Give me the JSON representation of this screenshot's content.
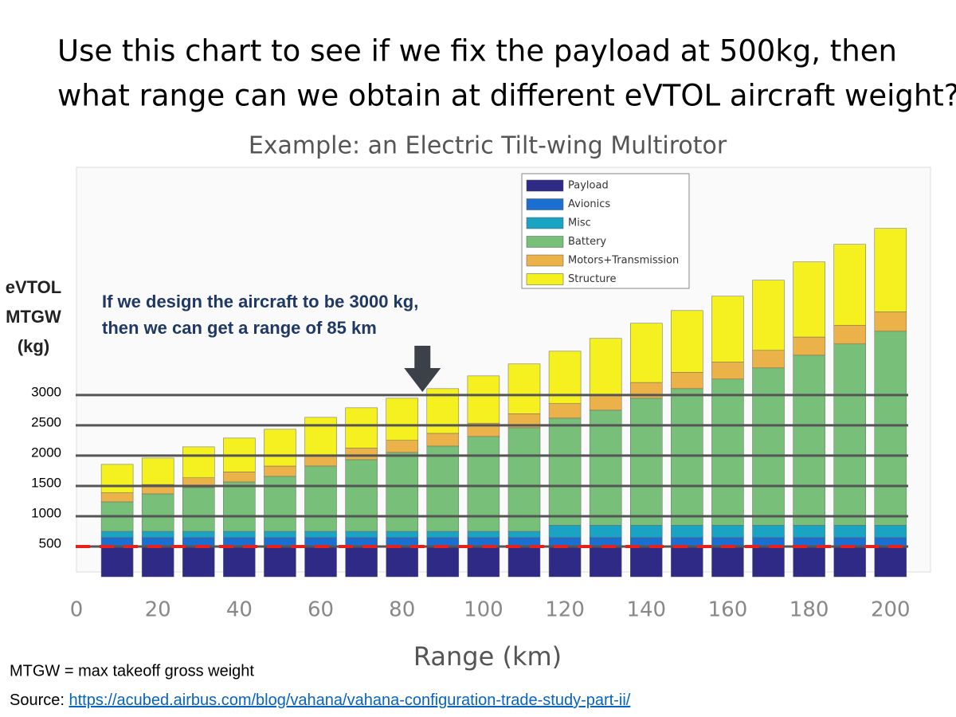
{
  "header": {
    "title_lines": [
      "Use this chart to see if we fix the payload at 500kg, then",
      "what range can we obtain at different eVTOL aircraft weight?"
    ]
  },
  "chart_data": {
    "type": "stacked_bar",
    "title": "Example: an Electric Tilt-wing Multirotor",
    "x_label": "Range (km)",
    "y_label_lines": [
      "eVTOL",
      "MTGW",
      "(kg)"
    ],
    "x": [
      10,
      20,
      30,
      40,
      50,
      60,
      70,
      80,
      90,
      100,
      110,
      120,
      130,
      140,
      150,
      160,
      170,
      180,
      190,
      200
    ],
    "xlim": [
      0,
      205
    ],
    "xticks": [
      0,
      20,
      40,
      60,
      80,
      100,
      120,
      140,
      160,
      180,
      200
    ],
    "ylim": [
      0,
      6760
    ],
    "yticks": [
      500,
      1000,
      1500,
      2000,
      2500,
      3000
    ],
    "grid": true,
    "legend": "top-center",
    "series": [
      {
        "name": "Payload",
        "color": "#2e2a86",
        "values": [
          500,
          500,
          500,
          500,
          500,
          500,
          500,
          500,
          500,
          500,
          500,
          500,
          500,
          500,
          500,
          500,
          500,
          500,
          500,
          500
        ]
      },
      {
        "name": "Avionics",
        "color": "#1a6fd0",
        "values": [
          150,
          150,
          150,
          150,
          150,
          150,
          150,
          150,
          150,
          150,
          150,
          150,
          150,
          150,
          150,
          150,
          150,
          150,
          150,
          150
        ]
      },
      {
        "name": "Misc",
        "color": "#1aa3c2",
        "values": [
          100,
          100,
          100,
          100,
          100,
          100,
          100,
          100,
          100,
          100,
          100,
          200,
          200,
          200,
          200,
          200,
          200,
          200,
          200,
          200
        ]
      },
      {
        "name": "Battery",
        "color": "#78c07a",
        "values": [
          487,
          619,
          724,
          816,
          908,
          1079,
          1184,
          1303,
          1408,
          1566,
          1711,
          1769,
          1900,
          2098,
          2256,
          2414,
          2598,
          2808,
          2993,
          3203
        ]
      },
      {
        "name": "Motors+Transmission",
        "color": "#ecb24a",
        "values": [
          150,
          155,
          160,
          165,
          170,
          180,
          190,
          200,
          210,
          220,
          230,
          240,
          250,
          260,
          270,
          280,
          290,
          300,
          310,
          320
        ]
      },
      {
        "name": "Structure",
        "color": "#f5f020",
        "values": [
          469,
          437,
          511,
          559,
          607,
          623,
          666,
          695,
          738,
          780,
          823,
          865,
          935,
          977,
          1019,
          1088,
          1158,
          1240,
          1335,
          1378
        ]
      }
    ],
    "reference_lines": [
      {
        "y": 500,
        "color": "#e8201a"
      }
    ],
    "annotations": [
      {
        "text_lines": [
          "If we design the aircraft to be 3000 kg,",
          "then we can get a range of 85 km"
        ],
        "x": 85
      }
    ]
  },
  "footer": {
    "note": "MTGW = max takeoff gross weight",
    "source_label": "Source: ",
    "source_link": "https://acubed.airbus.com/blog/vahana/vahana-configuration-trade-study-part-ii/"
  }
}
